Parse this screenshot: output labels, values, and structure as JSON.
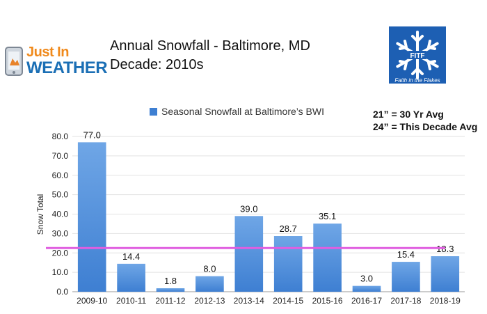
{
  "header": {
    "logo_line1": "Just In",
    "logo_line2": "WEATHER",
    "title_line1": "Annual Snowfall - Baltimore, MD",
    "title_line2": "Decade: 2010s",
    "badge_text": "Faith in the Flakes",
    "badge_mark": "FITF"
  },
  "notes": {
    "avg_30yr": "21” = 30 Yr Avg",
    "avg_decade": "24” = This Decade Avg"
  },
  "colors": {
    "bar": "#3e7fd2",
    "bar_light": "#6fa6e6",
    "avg_line": "#e05ee0",
    "logo_blue": "#1d5fb3"
  },
  "chart_data": {
    "type": "bar",
    "title": "",
    "legend": "Seasonal Snowfall at Baltimore’s BWI",
    "legend_position": "top",
    "xlabel": "",
    "ylabel": "Snow Total",
    "categories": [
      "2009-10",
      "2010-11",
      "2011-12",
      "2012-13",
      "2013-14",
      "2014-15",
      "2015-16",
      "2016-17",
      "2017-18",
      "2018-19"
    ],
    "values": [
      77.0,
      14.4,
      1.8,
      8.0,
      39.0,
      28.7,
      35.1,
      3.0,
      15.4,
      18.3
    ],
    "value_labels": [
      "77.0",
      "14.4",
      "1.8",
      "8.0",
      "39.0",
      "28.7",
      "35.1",
      "3.0",
      "15.4",
      "18.3"
    ],
    "ylim": [
      0,
      80
    ],
    "yticks": [
      "0.0",
      "10.0",
      "20.0",
      "30.0",
      "40.0",
      "50.0",
      "60.0",
      "70.0",
      "80.0"
    ],
    "grid": true,
    "reference_line": 22.5
  }
}
